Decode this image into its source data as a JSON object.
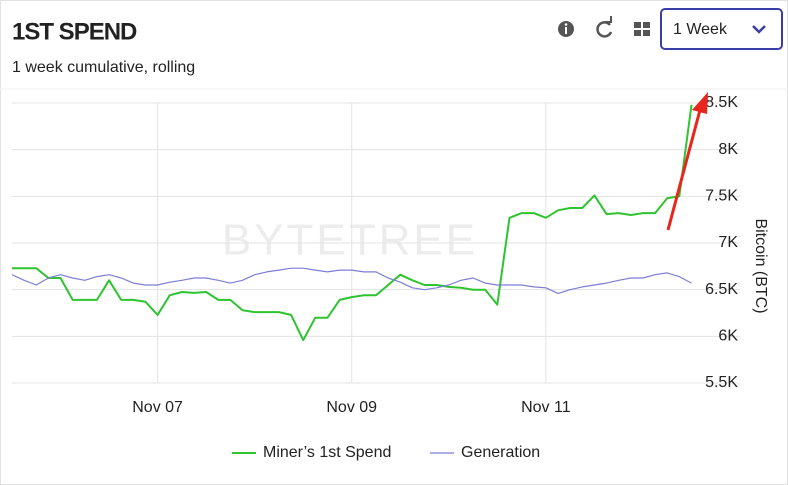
{
  "header": {
    "title": "1ST SPEND",
    "subtitle": "1 week cumulative, rolling",
    "period": "1 Week"
  },
  "chart_data": {
    "type": "line",
    "watermark": "BYTETREE",
    "y_label": "Bitcoin (BTC)",
    "x": [
      5.5,
      5.625,
      5.75,
      5.875,
      6.0,
      6.125,
      6.25,
      6.375,
      6.5,
      6.625,
      6.75,
      6.875,
      7.0,
      7.125,
      7.25,
      7.375,
      7.5,
      7.625,
      7.75,
      7.875,
      8.0,
      8.125,
      8.25,
      8.375,
      8.5,
      8.625,
      8.75,
      8.875,
      9.0,
      9.125,
      9.25,
      9.375,
      9.5,
      9.625,
      9.75,
      9.875,
      10.0,
      10.125,
      10.25,
      10.375,
      10.5,
      10.625,
      10.75,
      10.875,
      11.0,
      11.125,
      11.25,
      11.375,
      11.5,
      11.625,
      11.75,
      11.875,
      12.0,
      12.125,
      12.25,
      12.375,
      12.5
    ],
    "series": [
      {
        "name": "Miner’s 1st Spend",
        "color": "#2fc42f",
        "values": [
          6730,
          6730,
          6730,
          6625,
          6625,
          6390,
          6390,
          6390,
          6600,
          6390,
          6390,
          6370,
          6230,
          6440,
          6475,
          6465,
          6475,
          6390,
          6390,
          6280,
          6260,
          6260,
          6260,
          6230,
          5960,
          6200,
          6200,
          6390,
          6420,
          6440,
          6440,
          6550,
          6660,
          6600,
          6550,
          6550,
          6530,
          6520,
          6500,
          6500,
          6340,
          7270,
          7320,
          7320,
          7270,
          7350,
          7375,
          7375,
          7510,
          7310,
          7320,
          7300,
          7320,
          7320,
          7480,
          7500,
          8480
        ]
      },
      {
        "name": "Generation",
        "color": "#7b7fd6",
        "values": [
          6660,
          6600,
          6550,
          6625,
          6660,
          6625,
          6600,
          6640,
          6660,
          6625,
          6570,
          6550,
          6550,
          6580,
          6600,
          6625,
          6625,
          6600,
          6570,
          6600,
          6660,
          6690,
          6710,
          6730,
          6730,
          6710,
          6690,
          6710,
          6710,
          6690,
          6690,
          6625,
          6580,
          6520,
          6500,
          6520,
          6550,
          6600,
          6625,
          6570,
          6550,
          6550,
          6550,
          6530,
          6520,
          6460,
          6500,
          6530,
          6550,
          6570,
          6600,
          6625,
          6625,
          6660,
          6680,
          6640,
          6570
        ]
      }
    ],
    "xlim": [
      5.5,
      13
    ],
    "xticks": [
      {
        "value": 7,
        "label": "Nov 07"
      },
      {
        "value": 9,
        "label": "Nov 09"
      },
      {
        "value": 11,
        "label": "Nov 11"
      }
    ],
    "ylim": [
      5500,
      8500
    ],
    "yticks": [
      {
        "value": 5500,
        "label": "5.5K"
      },
      {
        "value": 6000,
        "label": "6K"
      },
      {
        "value": 6500,
        "label": "6.5K"
      },
      {
        "value": 7000,
        "label": "7K"
      },
      {
        "value": 7500,
        "label": "7.5K"
      },
      {
        "value": 8000,
        "label": "8K"
      },
      {
        "value": 8500,
        "label": "8.5K"
      }
    ],
    "grid": true
  }
}
